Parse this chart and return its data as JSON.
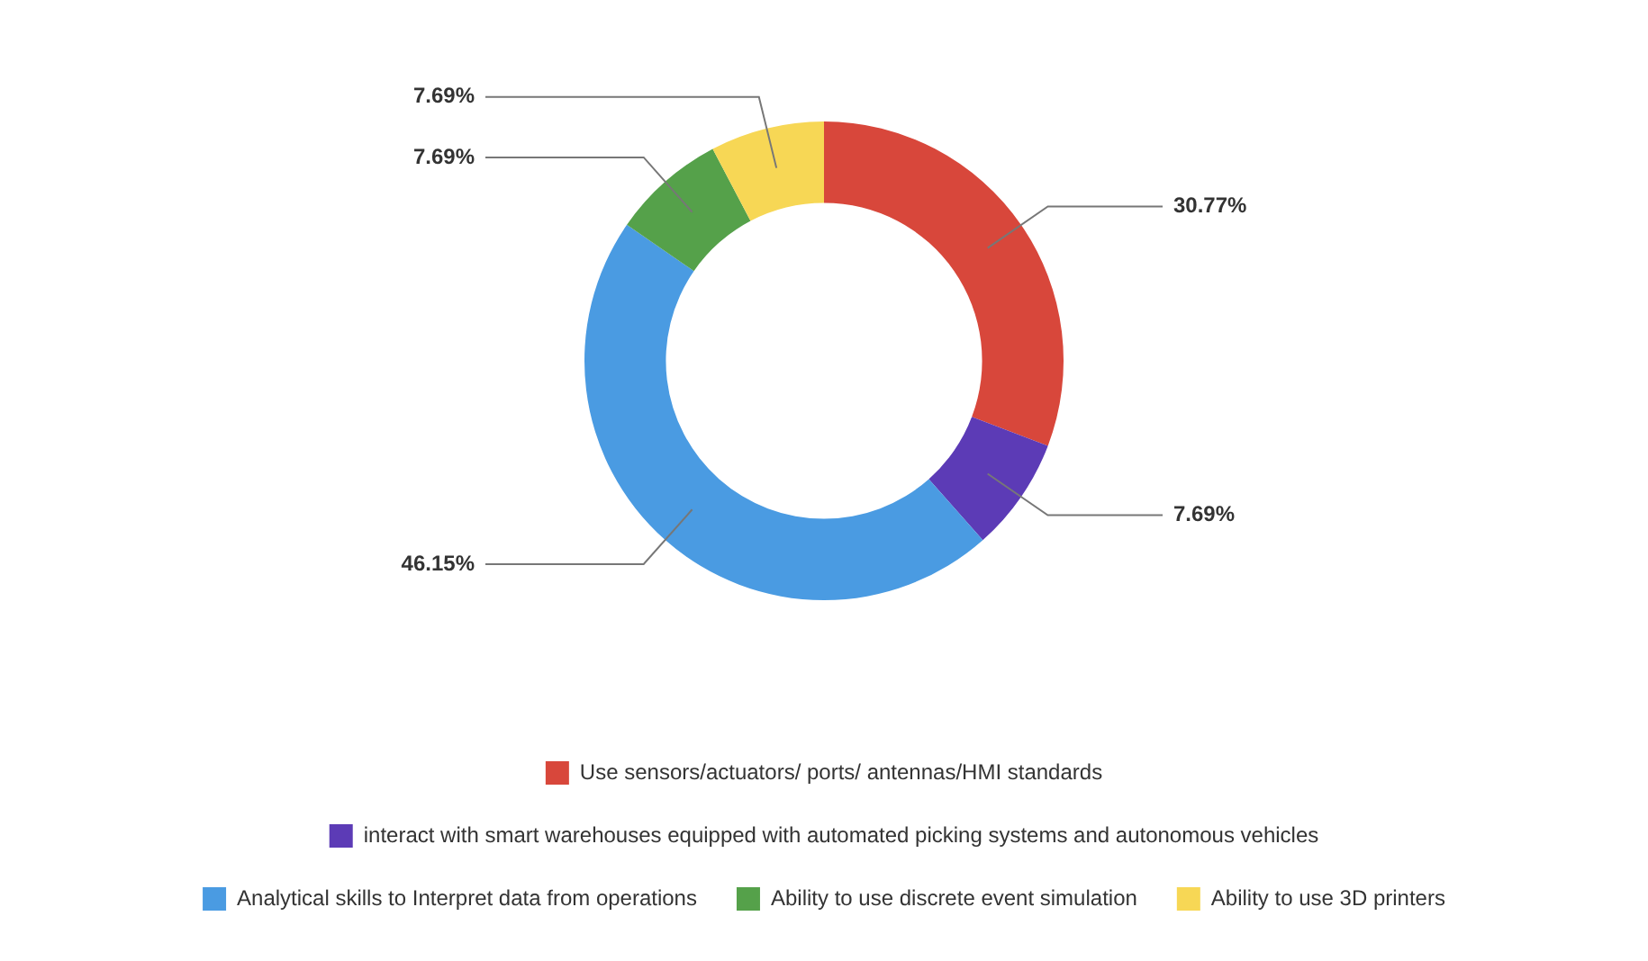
{
  "chart_data": {
    "type": "donut",
    "categories": [
      "Use sensors/actuators/ ports/ antennas/HMI standards",
      "interact with smart warehouses equipped with automated picking systems and autonomous vehicles",
      "Analytical skills to Interpret data from operations",
      "Ability to use discrete event simulation",
      "Ability to use 3D printers"
    ],
    "values": [
      30.77,
      7.69,
      46.15,
      7.69,
      7.69
    ],
    "colors": [
      "#d8473b",
      "#5c3bb6",
      "#4a9be2",
      "#55a14a",
      "#f7d755"
    ],
    "value_labels": [
      "30.77%",
      "7.69%",
      "46.15%",
      "7.69%",
      "7.69%"
    ],
    "legend": "bottom"
  }
}
